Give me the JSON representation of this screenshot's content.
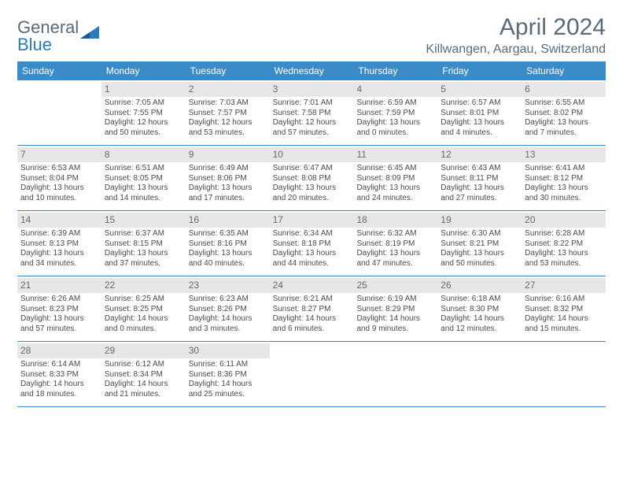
{
  "logo": {
    "text1": "General",
    "text2": "Blue"
  },
  "title": "April 2024",
  "location": "Killwangen, Aargau, Switzerland",
  "weekdays": [
    "Sunday",
    "Monday",
    "Tuesday",
    "Wednesday",
    "Thursday",
    "Friday",
    "Saturday"
  ],
  "colors": {
    "header_bar": "#3b8bc9",
    "daynum_bg": "#e7e7e7",
    "text_gray": "#5a6a77",
    "logo_blue": "#2a7ac0",
    "border": "#3b8bc9",
    "background": "#ffffff"
  },
  "weeks": [
    [
      {
        "num": "",
        "sunrise": "",
        "sunset": "",
        "daylight1": "",
        "daylight2": ""
      },
      {
        "num": "1",
        "sunrise": "Sunrise: 7:05 AM",
        "sunset": "Sunset: 7:55 PM",
        "daylight1": "Daylight: 12 hours",
        "daylight2": "and 50 minutes."
      },
      {
        "num": "2",
        "sunrise": "Sunrise: 7:03 AM",
        "sunset": "Sunset: 7:57 PM",
        "daylight1": "Daylight: 12 hours",
        "daylight2": "and 53 minutes."
      },
      {
        "num": "3",
        "sunrise": "Sunrise: 7:01 AM",
        "sunset": "Sunset: 7:58 PM",
        "daylight1": "Daylight: 12 hours",
        "daylight2": "and 57 minutes."
      },
      {
        "num": "4",
        "sunrise": "Sunrise: 6:59 AM",
        "sunset": "Sunset: 7:59 PM",
        "daylight1": "Daylight: 13 hours",
        "daylight2": "and 0 minutes."
      },
      {
        "num": "5",
        "sunrise": "Sunrise: 6:57 AM",
        "sunset": "Sunset: 8:01 PM",
        "daylight1": "Daylight: 13 hours",
        "daylight2": "and 4 minutes."
      },
      {
        "num": "6",
        "sunrise": "Sunrise: 6:55 AM",
        "sunset": "Sunset: 8:02 PM",
        "daylight1": "Daylight: 13 hours",
        "daylight2": "and 7 minutes."
      }
    ],
    [
      {
        "num": "7",
        "sunrise": "Sunrise: 6:53 AM",
        "sunset": "Sunset: 8:04 PM",
        "daylight1": "Daylight: 13 hours",
        "daylight2": "and 10 minutes."
      },
      {
        "num": "8",
        "sunrise": "Sunrise: 6:51 AM",
        "sunset": "Sunset: 8:05 PM",
        "daylight1": "Daylight: 13 hours",
        "daylight2": "and 14 minutes."
      },
      {
        "num": "9",
        "sunrise": "Sunrise: 6:49 AM",
        "sunset": "Sunset: 8:06 PM",
        "daylight1": "Daylight: 13 hours",
        "daylight2": "and 17 minutes."
      },
      {
        "num": "10",
        "sunrise": "Sunrise: 6:47 AM",
        "sunset": "Sunset: 8:08 PM",
        "daylight1": "Daylight: 13 hours",
        "daylight2": "and 20 minutes."
      },
      {
        "num": "11",
        "sunrise": "Sunrise: 6:45 AM",
        "sunset": "Sunset: 8:09 PM",
        "daylight1": "Daylight: 13 hours",
        "daylight2": "and 24 minutes."
      },
      {
        "num": "12",
        "sunrise": "Sunrise: 6:43 AM",
        "sunset": "Sunset: 8:11 PM",
        "daylight1": "Daylight: 13 hours",
        "daylight2": "and 27 minutes."
      },
      {
        "num": "13",
        "sunrise": "Sunrise: 6:41 AM",
        "sunset": "Sunset: 8:12 PM",
        "daylight1": "Daylight: 13 hours",
        "daylight2": "and 30 minutes."
      }
    ],
    [
      {
        "num": "14",
        "sunrise": "Sunrise: 6:39 AM",
        "sunset": "Sunset: 8:13 PM",
        "daylight1": "Daylight: 13 hours",
        "daylight2": "and 34 minutes."
      },
      {
        "num": "15",
        "sunrise": "Sunrise: 6:37 AM",
        "sunset": "Sunset: 8:15 PM",
        "daylight1": "Daylight: 13 hours",
        "daylight2": "and 37 minutes."
      },
      {
        "num": "16",
        "sunrise": "Sunrise: 6:35 AM",
        "sunset": "Sunset: 8:16 PM",
        "daylight1": "Daylight: 13 hours",
        "daylight2": "and 40 minutes."
      },
      {
        "num": "17",
        "sunrise": "Sunrise: 6:34 AM",
        "sunset": "Sunset: 8:18 PM",
        "daylight1": "Daylight: 13 hours",
        "daylight2": "and 44 minutes."
      },
      {
        "num": "18",
        "sunrise": "Sunrise: 6:32 AM",
        "sunset": "Sunset: 8:19 PM",
        "daylight1": "Daylight: 13 hours",
        "daylight2": "and 47 minutes."
      },
      {
        "num": "19",
        "sunrise": "Sunrise: 6:30 AM",
        "sunset": "Sunset: 8:21 PM",
        "daylight1": "Daylight: 13 hours",
        "daylight2": "and 50 minutes."
      },
      {
        "num": "20",
        "sunrise": "Sunrise: 6:28 AM",
        "sunset": "Sunset: 8:22 PM",
        "daylight1": "Daylight: 13 hours",
        "daylight2": "and 53 minutes."
      }
    ],
    [
      {
        "num": "21",
        "sunrise": "Sunrise: 6:26 AM",
        "sunset": "Sunset: 8:23 PM",
        "daylight1": "Daylight: 13 hours",
        "daylight2": "and 57 minutes."
      },
      {
        "num": "22",
        "sunrise": "Sunrise: 6:25 AM",
        "sunset": "Sunset: 8:25 PM",
        "daylight1": "Daylight: 14 hours",
        "daylight2": "and 0 minutes."
      },
      {
        "num": "23",
        "sunrise": "Sunrise: 6:23 AM",
        "sunset": "Sunset: 8:26 PM",
        "daylight1": "Daylight: 14 hours",
        "daylight2": "and 3 minutes."
      },
      {
        "num": "24",
        "sunrise": "Sunrise: 6:21 AM",
        "sunset": "Sunset: 8:27 PM",
        "daylight1": "Daylight: 14 hours",
        "daylight2": "and 6 minutes."
      },
      {
        "num": "25",
        "sunrise": "Sunrise: 6:19 AM",
        "sunset": "Sunset: 8:29 PM",
        "daylight1": "Daylight: 14 hours",
        "daylight2": "and 9 minutes."
      },
      {
        "num": "26",
        "sunrise": "Sunrise: 6:18 AM",
        "sunset": "Sunset: 8:30 PM",
        "daylight1": "Daylight: 14 hours",
        "daylight2": "and 12 minutes."
      },
      {
        "num": "27",
        "sunrise": "Sunrise: 6:16 AM",
        "sunset": "Sunset: 8:32 PM",
        "daylight1": "Daylight: 14 hours",
        "daylight2": "and 15 minutes."
      }
    ],
    [
      {
        "num": "28",
        "sunrise": "Sunrise: 6:14 AM",
        "sunset": "Sunset: 8:33 PM",
        "daylight1": "Daylight: 14 hours",
        "daylight2": "and 18 minutes."
      },
      {
        "num": "29",
        "sunrise": "Sunrise: 6:12 AM",
        "sunset": "Sunset: 8:34 PM",
        "daylight1": "Daylight: 14 hours",
        "daylight2": "and 21 minutes."
      },
      {
        "num": "30",
        "sunrise": "Sunrise: 6:11 AM",
        "sunset": "Sunset: 8:36 PM",
        "daylight1": "Daylight: 14 hours",
        "daylight2": "and 25 minutes."
      },
      {
        "num": "",
        "sunrise": "",
        "sunset": "",
        "daylight1": "",
        "daylight2": ""
      },
      {
        "num": "",
        "sunrise": "",
        "sunset": "",
        "daylight1": "",
        "daylight2": ""
      },
      {
        "num": "",
        "sunrise": "",
        "sunset": "",
        "daylight1": "",
        "daylight2": ""
      },
      {
        "num": "",
        "sunrise": "",
        "sunset": "",
        "daylight1": "",
        "daylight2": ""
      }
    ]
  ]
}
